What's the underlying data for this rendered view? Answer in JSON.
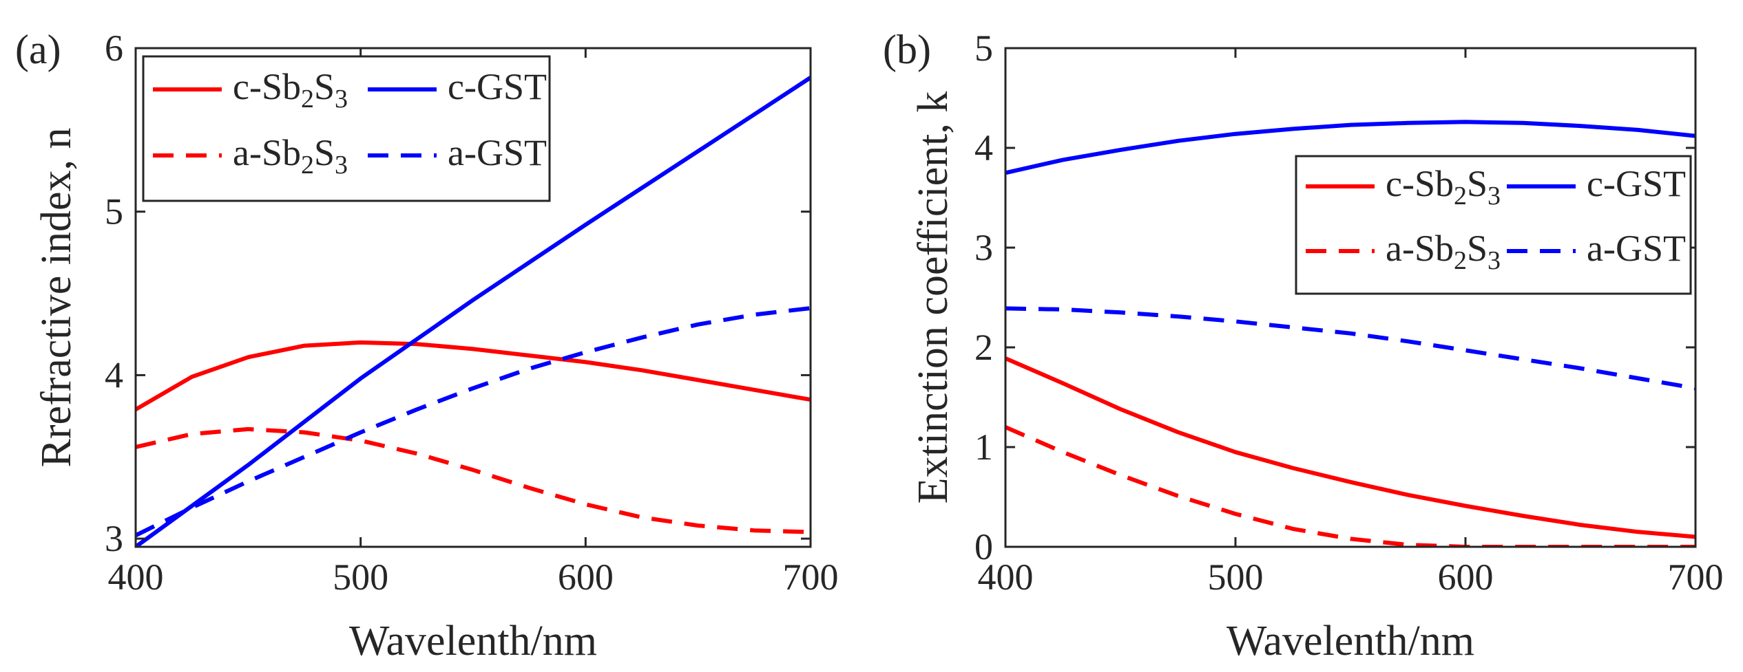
{
  "chart_data": [
    {
      "type": "line",
      "panel_label": "(a)",
      "xlabel": "Wavelenth/nm",
      "ylabel": "Rrefractive index, n",
      "xlim": [
        400,
        700
      ],
      "ylim": [
        2.95,
        6
      ],
      "xticks": [
        400,
        500,
        600,
        700
      ],
      "yticks": [
        3,
        4,
        5,
        6
      ],
      "legend_position": "top-left",
      "series": [
        {
          "name": "c-Sb2S3",
          "label_parts": [
            "c-Sb",
            "2",
            "S",
            "3"
          ],
          "color": "#ff0000",
          "dash": "solid",
          "x": [
            400,
            425,
            450,
            475,
            500,
            525,
            550,
            575,
            600,
            625,
            650,
            675,
            700
          ],
          "y": [
            3.79,
            3.99,
            4.11,
            4.18,
            4.2,
            4.19,
            4.16,
            4.12,
            4.08,
            4.03,
            3.97,
            3.91,
            3.85
          ]
        },
        {
          "name": "c-GST",
          "label_parts": [
            "c-GST"
          ],
          "color": "#0000ff",
          "dash": "solid",
          "x": [
            400,
            450,
            500,
            550,
            600,
            650,
            700
          ],
          "y": [
            2.95,
            3.45,
            3.98,
            4.46,
            4.92,
            5.37,
            5.82
          ]
        },
        {
          "name": "a-Sb2S3",
          "label_parts": [
            "a-Sb",
            "2",
            "S",
            "3"
          ],
          "color": "#ff0000",
          "dash": "dashed",
          "x": [
            400,
            425,
            450,
            475,
            500,
            525,
            550,
            575,
            600,
            625,
            650,
            675,
            700
          ],
          "y": [
            3.56,
            3.64,
            3.67,
            3.65,
            3.6,
            3.52,
            3.42,
            3.31,
            3.21,
            3.13,
            3.08,
            3.05,
            3.04
          ]
        },
        {
          "name": "a-GST",
          "label_parts": [
            "a-GST"
          ],
          "color": "#0000ff",
          "dash": "dashed",
          "x": [
            400,
            425,
            450,
            475,
            500,
            525,
            550,
            575,
            600,
            625,
            650,
            675,
            700
          ],
          "y": [
            3.02,
            3.19,
            3.35,
            3.5,
            3.65,
            3.79,
            3.92,
            4.04,
            4.14,
            4.23,
            4.31,
            4.37,
            4.41
          ]
        }
      ]
    },
    {
      "type": "line",
      "panel_label": "(b)",
      "xlabel": "Wavelenth/nm",
      "ylabel": "Extinction coefficient, k",
      "xlim": [
        400,
        700
      ],
      "ylim": [
        0,
        5
      ],
      "xticks": [
        400,
        500,
        600,
        700
      ],
      "yticks": [
        0,
        1,
        2,
        3,
        4,
        5
      ],
      "legend_position": "right",
      "series": [
        {
          "name": "c-Sb2S3",
          "label_parts": [
            "c-Sb",
            "2",
            "S",
            "3"
          ],
          "color": "#ff0000",
          "dash": "solid",
          "x": [
            400,
            425,
            450,
            475,
            500,
            525,
            550,
            575,
            600,
            625,
            650,
            675,
            700
          ],
          "y": [
            1.89,
            1.64,
            1.38,
            1.15,
            0.95,
            0.79,
            0.65,
            0.52,
            0.41,
            0.31,
            0.22,
            0.15,
            0.1
          ]
        },
        {
          "name": "c-GST",
          "label_parts": [
            "c-GST"
          ],
          "color": "#0000ff",
          "dash": "solid",
          "x": [
            400,
            425,
            450,
            475,
            500,
            525,
            550,
            575,
            600,
            625,
            650,
            675,
            700
          ],
          "y": [
            3.75,
            3.88,
            3.98,
            4.07,
            4.14,
            4.19,
            4.23,
            4.25,
            4.26,
            4.25,
            4.22,
            4.18,
            4.12
          ]
        },
        {
          "name": "a-Sb2S3",
          "label_parts": [
            "a-Sb",
            "2",
            "S",
            "3"
          ],
          "color": "#ff0000",
          "dash": "dashed",
          "x": [
            400,
            425,
            450,
            475,
            500,
            525,
            550,
            575,
            600,
            625,
            650,
            675,
            700
          ],
          "y": [
            1.2,
            0.95,
            0.72,
            0.51,
            0.33,
            0.18,
            0.08,
            0.02,
            0.0,
            0.0,
            0.0,
            0.0,
            0.0
          ]
        },
        {
          "name": "a-GST",
          "label_parts": [
            "a-GST"
          ],
          "color": "#0000ff",
          "dash": "dashed",
          "x": [
            400,
            425,
            450,
            475,
            500,
            525,
            550,
            575,
            600,
            625,
            650,
            675,
            700
          ],
          "y": [
            2.39,
            2.38,
            2.35,
            2.31,
            2.26,
            2.2,
            2.14,
            2.06,
            1.97,
            1.88,
            1.79,
            1.69,
            1.59
          ]
        }
      ]
    }
  ]
}
